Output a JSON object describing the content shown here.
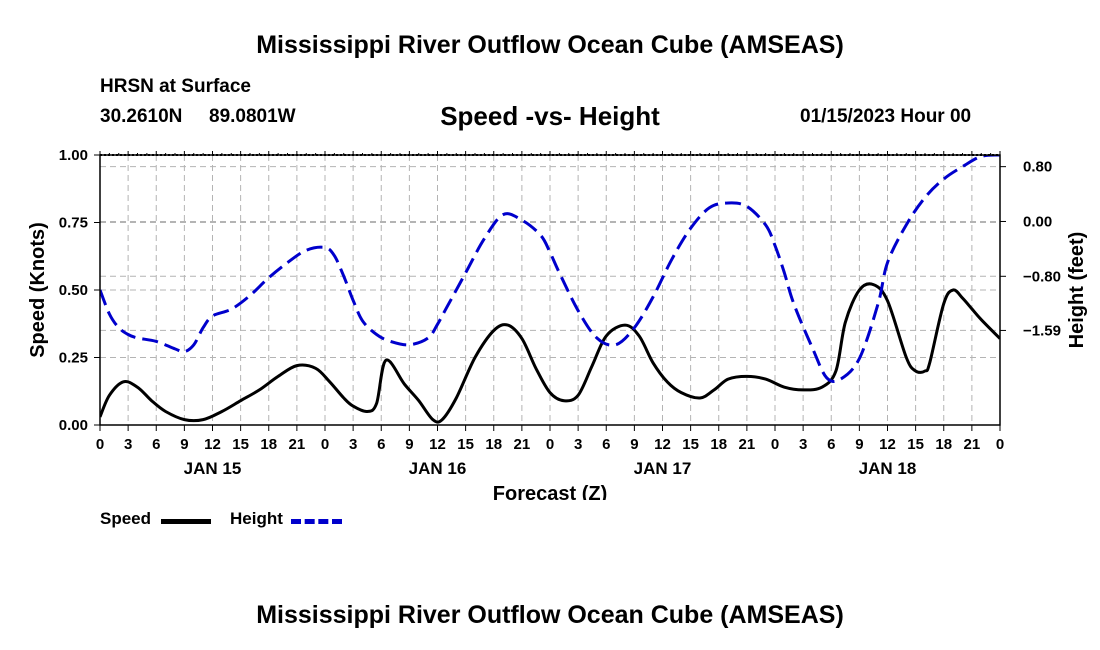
{
  "page_title": "Mississippi River Outflow Ocean Cube (AMSEAS)",
  "footer_title": "Mississippi River Outflow Ocean Cube (AMSEAS)",
  "station": {
    "name": "HRSN at Surface",
    "lat": "30.2610N",
    "lon": "89.0801W"
  },
  "run_time": "01/15/2023 Hour 00",
  "legend": {
    "speed_label": "Speed",
    "height_label": "Height"
  },
  "colors": {
    "speed": "#000000",
    "height": "#0000cc",
    "grid": "#b4b4b4"
  },
  "chart_data": {
    "type": "line",
    "title": "Speed -vs- Height",
    "xlabel": "Forecast (Z)",
    "ylabel": "Speed (Knots)",
    "y2label": "Height (feet)",
    "x_range_hours": [
      0,
      96
    ],
    "x_tick_step_hours": 3,
    "x_tick_labels": [
      "0",
      "3",
      "6",
      "9",
      "12",
      "15",
      "18",
      "21",
      "0",
      "3",
      "6",
      "9",
      "12",
      "15",
      "18",
      "21",
      "0",
      "3",
      "6",
      "9",
      "12",
      "15",
      "18",
      "21",
      "0",
      "3",
      "6",
      "9",
      "12",
      "15",
      "18",
      "21",
      "0"
    ],
    "day_labels": [
      {
        "hour": 12,
        "label": "JAN 15"
      },
      {
        "hour": 36,
        "label": "JAN 16"
      },
      {
        "hour": 60,
        "label": "JAN 17"
      },
      {
        "hour": 84,
        "label": "JAN 18"
      }
    ],
    "ylim": [
      0,
      1.0
    ],
    "y_ticks": [
      0,
      0.25,
      0.5,
      0.75,
      1.0
    ],
    "y_tick_labels": [
      "0.00",
      "0.25",
      "0.50",
      "0.75",
      "1.00"
    ],
    "y2lim": [
      -2.97,
      0.97
    ],
    "y2_ticks": [
      0.8,
      0.0,
      -0.8,
      -1.59
    ],
    "y2_tick_labels": [
      "0.80",
      "0.00",
      "−0.80",
      "−1.59"
    ],
    "series": [
      {
        "name": "Speed",
        "axis": "left",
        "style": "solid",
        "x": [
          0,
          1,
          2.5,
          4,
          5.5,
          7,
          9,
          11,
          13,
          15,
          17,
          19,
          21,
          23,
          24.5,
          26,
          27,
          28.5,
          29.5,
          30.5,
          32.5,
          34,
          35.5,
          36.5,
          38,
          40,
          42,
          43.5,
          45,
          46.5,
          48,
          49.5,
          51,
          52.5,
          54,
          56,
          57.5,
          59,
          60.5,
          62,
          64,
          65.5,
          67,
          69,
          71,
          73,
          75,
          77,
          78.5,
          79.5,
          81,
          82.5,
          84,
          86,
          87,
          88,
          88.5,
          90,
          91,
          92,
          93,
          94,
          96
        ],
        "values": [
          0.03,
          0.11,
          0.16,
          0.14,
          0.09,
          0.05,
          0.02,
          0.02,
          0.05,
          0.09,
          0.13,
          0.18,
          0.22,
          0.21,
          0.16,
          0.1,
          0.07,
          0.05,
          0.08,
          0.24,
          0.15,
          0.09,
          0.02,
          0.02,
          0.1,
          0.25,
          0.35,
          0.37,
          0.32,
          0.21,
          0.12,
          0.09,
          0.11,
          0.22,
          0.33,
          0.37,
          0.33,
          0.23,
          0.16,
          0.12,
          0.1,
          0.13,
          0.17,
          0.18,
          0.17,
          0.14,
          0.13,
          0.14,
          0.2,
          0.38,
          0.5,
          0.52,
          0.46,
          0.25,
          0.2,
          0.2,
          0.23,
          0.45,
          0.5,
          0.47,
          0.43,
          0.39,
          0.32
        ]
      },
      {
        "name": "Height",
        "axis": "right",
        "style": "dashed",
        "x": [
          0,
          1,
          2,
          3,
          4,
          6,
          8,
          9,
          10,
          11,
          12,
          14,
          16,
          18,
          20,
          22,
          24,
          25,
          26,
          27,
          28,
          29.5,
          31,
          33,
          35,
          36,
          37,
          39,
          41,
          43,
          45,
          47,
          48,
          49,
          51,
          53,
          55,
          57,
          59,
          61,
          63,
          65,
          67,
          69,
          71,
          72,
          73,
          74,
          76,
          77.5,
          79,
          81,
          83,
          84,
          86,
          88,
          90,
          92,
          94,
          96
        ],
        "values": [
          -1.0,
          -1.35,
          -1.55,
          -1.65,
          -1.7,
          -1.75,
          -1.86,
          -1.9,
          -1.8,
          -1.55,
          -1.38,
          -1.28,
          -1.08,
          -0.82,
          -0.6,
          -0.42,
          -0.38,
          -0.5,
          -0.8,
          -1.15,
          -1.45,
          -1.65,
          -1.75,
          -1.8,
          -1.7,
          -1.5,
          -1.25,
          -0.75,
          -0.25,
          0.1,
          0.02,
          -0.2,
          -0.45,
          -0.75,
          -1.3,
          -1.7,
          -1.8,
          -1.55,
          -1.1,
          -0.55,
          -0.1,
          0.2,
          0.27,
          0.22,
          -0.05,
          -0.35,
          -0.75,
          -1.2,
          -1.85,
          -2.28,
          -2.3,
          -2.0,
          -1.2,
          -0.6,
          -0.05,
          0.35,
          0.62,
          0.8,
          0.95,
          0.97
        ]
      }
    ]
  }
}
